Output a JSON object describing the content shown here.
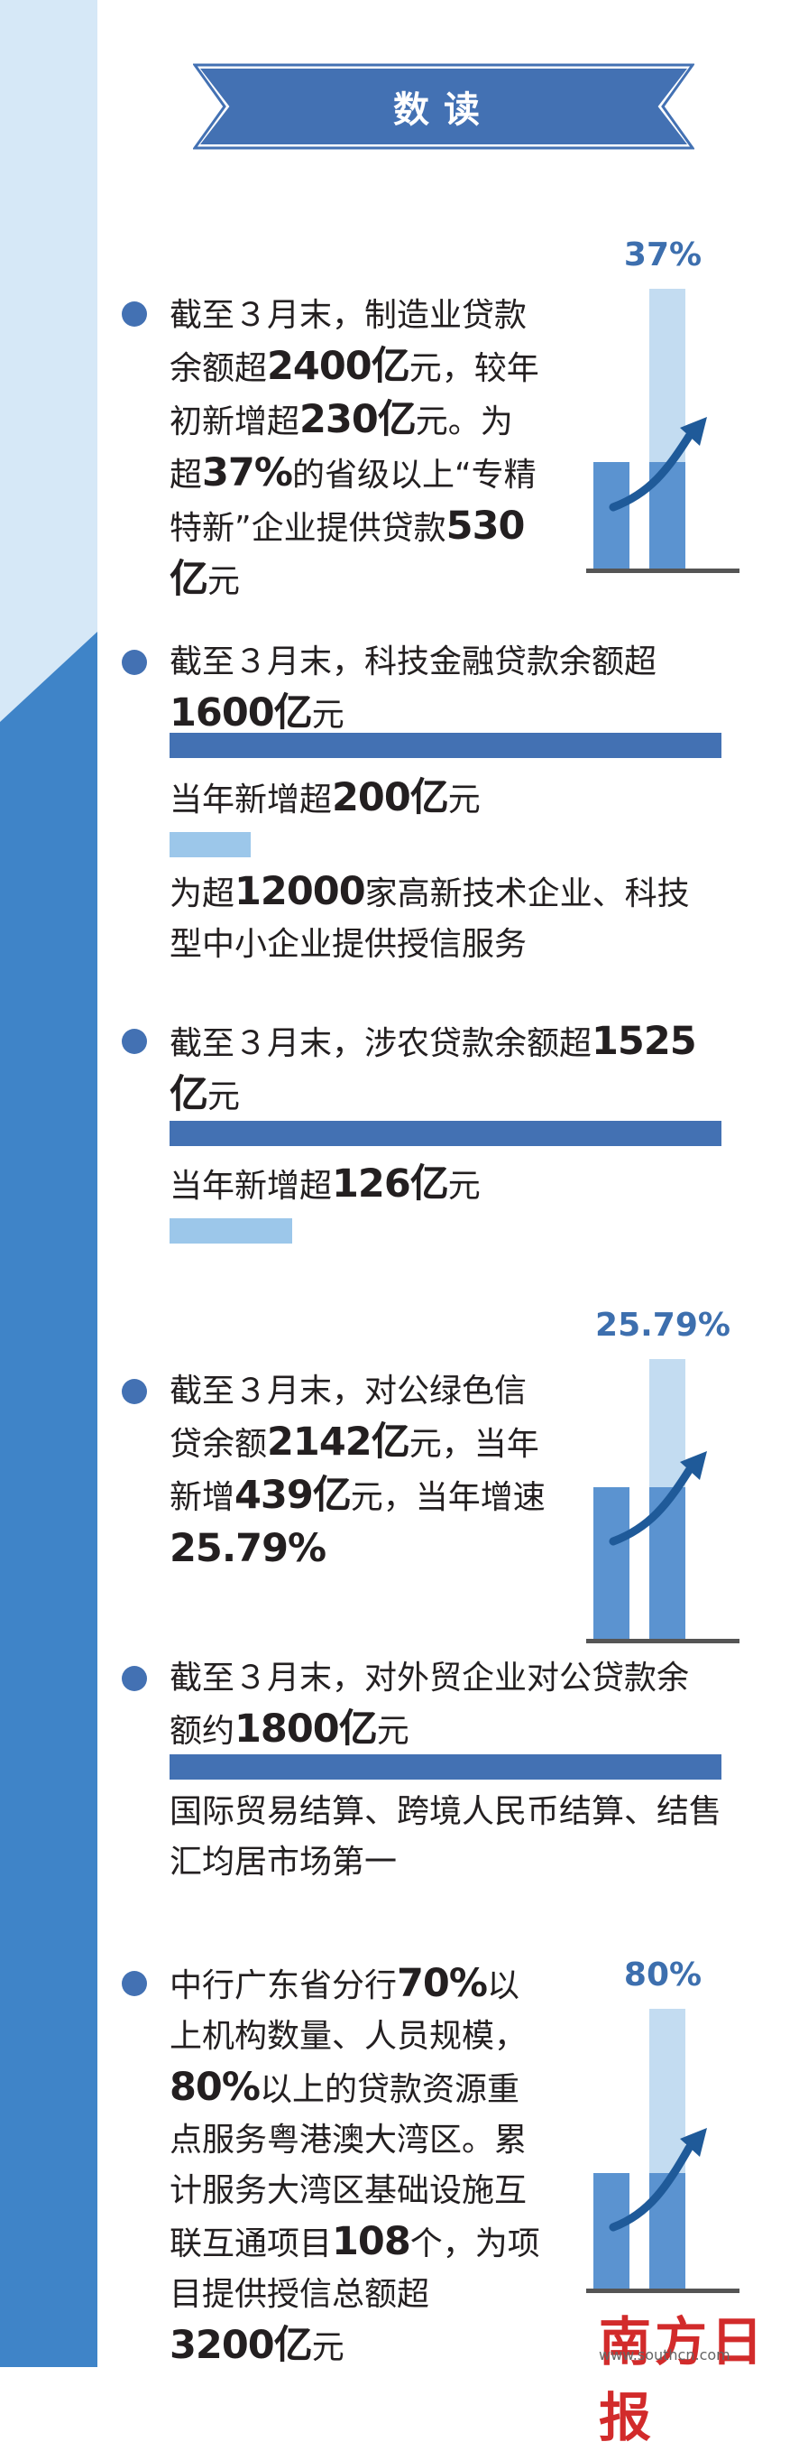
{
  "header": {
    "title": "数读"
  },
  "items": [
    {
      "lines": [
        [
          "截至３月末，制造业贷款"
        ],
        [
          "余额超",
          {
            "b": "2400亿"
          },
          "元，较年"
        ],
        [
          "初新增超",
          {
            "b": "230亿"
          },
          "元。为"
        ],
        [
          "超",
          {
            "b": "37%"
          },
          "的省级以上“专精"
        ],
        [
          "特新”企业提供贷款",
          {
            "b": "530"
          }
        ],
        [
          {
            "b": "亿"
          },
          "元"
        ]
      ],
      "chart_label": "37%"
    },
    {
      "lines": [
        [
          "截至３月末，科技金融贷款余额超"
        ],
        [
          {
            "b": "1600亿"
          },
          "元"
        ]
      ],
      "sub1": [
        "当年新增超",
        {
          "b": "200亿"
        },
        "元"
      ],
      "sub2": [
        [
          "为超",
          {
            "b": "12000"
          },
          "家高新技术企业、科技"
        ],
        [
          "型中小企业提供授信服务"
        ]
      ]
    },
    {
      "lines": [
        [
          "截至３月末，涉农贷款余额超",
          {
            "b": "1525"
          }
        ],
        [
          {
            "b": "亿"
          },
          "元"
        ]
      ],
      "sub1": [
        "当年新增超",
        {
          "b": "126亿"
        },
        "元"
      ]
    },
    {
      "lines": [
        [
          "截至３月末，对公绿色信"
        ],
        [
          "贷余额",
          {
            "b": "2142亿"
          },
          "元，当年"
        ],
        [
          "新增",
          {
            "b": "439亿"
          },
          "元，当年增速"
        ],
        [
          {
            "b": "25.79%"
          }
        ]
      ],
      "chart_label": "25.79%"
    },
    {
      "lines": [
        [
          "截至３月末，对外贸企业对公贷款余"
        ],
        [
          "额约",
          {
            "b": "1800亿"
          },
          "元"
        ]
      ],
      "sub2": [
        [
          "国际贸易结算、跨境人民币结算、结售"
        ],
        [
          "汇均居市场第一"
        ]
      ]
    },
    {
      "lines": [
        [
          "中行广东省分行",
          {
            "b": "70%"
          },
          "以"
        ],
        [
          "上机构数量、人员规模，"
        ],
        [
          {
            "b": "80%"
          },
          "以上的贷款资源重"
        ],
        [
          "点服务粤港澳大湾区。累"
        ],
        [
          "计服务大湾区基础设施互"
        ],
        [
          "联互通项目",
          {
            "b": "108"
          },
          "个，为项"
        ],
        [
          "目提供授信总额超"
        ],
        [
          {
            "b": "3200亿"
          },
          "元"
        ]
      ],
      "chart_label": "80%"
    }
  ],
  "logo": {
    "text": "南方日报",
    "url": "www.southcn.com"
  }
}
